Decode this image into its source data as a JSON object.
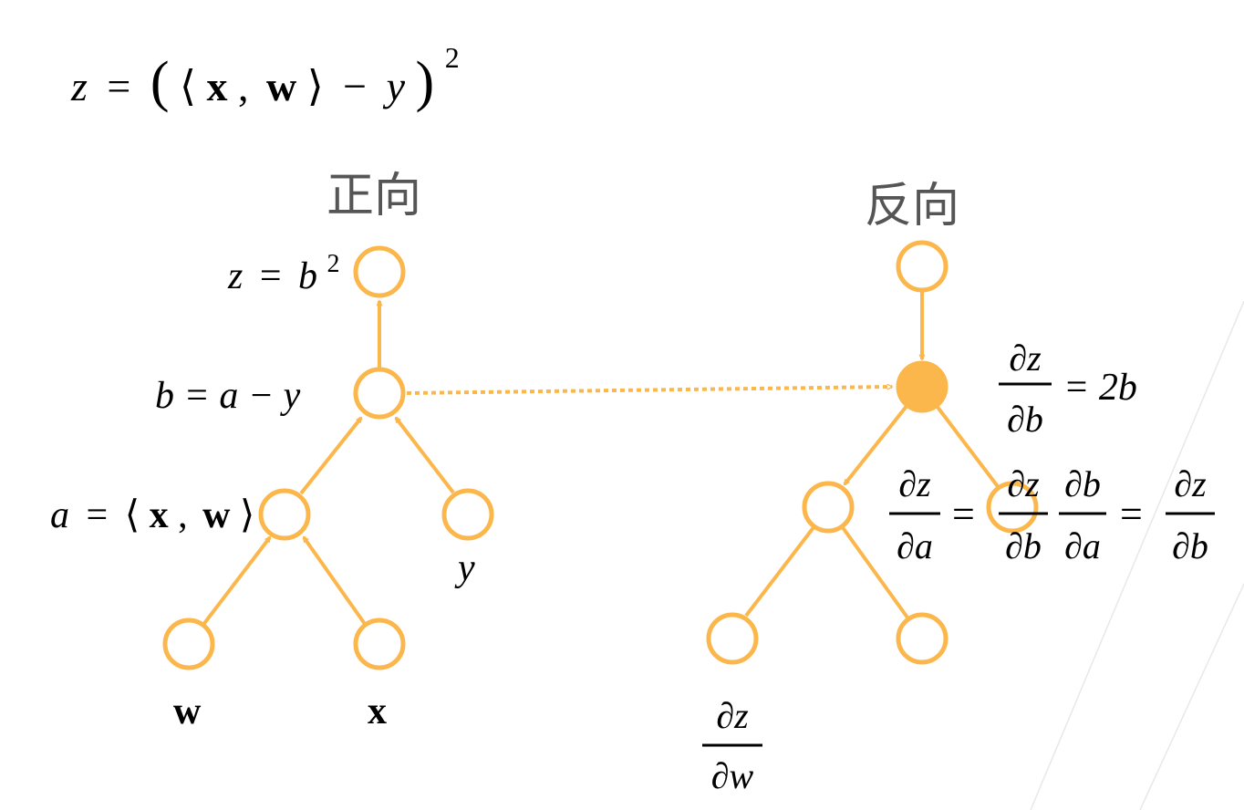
{
  "formula": {
    "lhs": "z",
    "eq": "=",
    "lparen": "(",
    "lang": "⟨",
    "x": "x",
    "comma": ",",
    "w": "w",
    "rang": "⟩",
    "minus": "−",
    "y": "y",
    "rparen": ")",
    "exp": "2"
  },
  "forward": {
    "title": "正向",
    "z_label": {
      "lhs": "z",
      "eq": "=",
      "b": "b",
      "exp": "2"
    },
    "b_label": {
      "text": "b = a − y"
    },
    "a_label": {
      "lhs": "a",
      "eq": "=",
      "lang": "⟨",
      "x": "x",
      "comma": ",",
      "w": "w",
      "rang": "⟩"
    },
    "leaf_w": "w",
    "leaf_x": "x",
    "leaf_y": "y"
  },
  "backward": {
    "title": "反向",
    "dzdb": {
      "num": "∂z",
      "den": "∂b",
      "rhs": "= 2b"
    },
    "chain": {
      "lhs_num": "∂z",
      "lhs_den": "∂a",
      "eq1": "=",
      "t1_num": "∂z",
      "t1_den": "∂b",
      "t2_num": "∂b",
      "t2_den": "∂a",
      "eq2": "=",
      "rhs_num": "∂z",
      "rhs_den": "∂b"
    },
    "dzdw": {
      "num": "∂z",
      "den": "∂w"
    }
  },
  "colors": {
    "node_stroke": "#fbb74b",
    "node_filled": "#fbb74b",
    "title_text": "#555555"
  }
}
